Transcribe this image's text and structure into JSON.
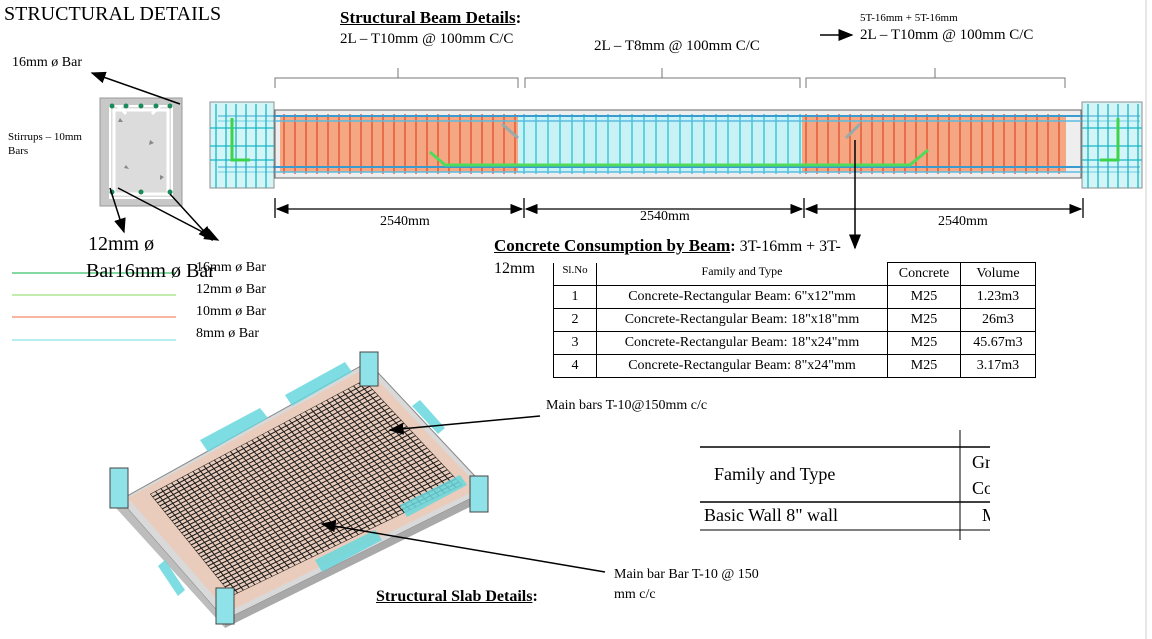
{
  "page_title": "STRUCTURAL DETAILS",
  "beam": {
    "heading": "Structural Beam Details",
    "heading_colon": ":",
    "stirrup_left": "2L – T10mm @ 100mm C/C",
    "stirrup_mid": "2L – T8mm @ 100mm C/C",
    "top_note": "5T-16mm + 5T-16mm",
    "stirrup_right": "2L – T10mm @ 100mm C/C",
    "span_1": "2540mm",
    "span_2": "2540mm",
    "span_3": "2540mm"
  },
  "section": {
    "bar_top": "16mm ø Bar",
    "stirrups_line1": "Stirrups – 10mm",
    "stirrups_line2": "Bars",
    "bar_bottom_a": "12mm ø",
    "bar_bottom_b": "Bar16mm ø Bar"
  },
  "legend": [
    {
      "label": "16mm ø Bar",
      "color": "#3cc16a"
    },
    {
      "label": "12mm ø Bar",
      "color": "#9fe07f"
    },
    {
      "label": "10mm ø Bar",
      "color": "#f08a6a"
    },
    {
      "label": "8mm ø Bar",
      "color": "#8fe3e8"
    }
  ],
  "concrete": {
    "heading": "Concrete Consumption by Beam",
    "heading_colon": ":",
    "heading_tail": " 3T-16mm + 3T-",
    "heading_wrap": "12mm",
    "col_sl": "Sl.No",
    "col_family": "Family and Type",
    "col_concrete": "Concrete",
    "col_volume": "Volume",
    "rows": [
      {
        "no": "1",
        "family": "Concrete-Rectangular Beam: 6\"x12\"mm",
        "concrete": "M25",
        "volume": "1.23m3"
      },
      {
        "no": "2",
        "family": "Concrete-Rectangular Beam: 18\"x18\"mm",
        "concrete": "M25",
        "volume": "26m3"
      },
      {
        "no": "3",
        "family": "Concrete-Rectangular Beam: 18\"x24\"mm",
        "concrete": "M25",
        "volume": "45.67m3"
      },
      {
        "no": "4",
        "family": "Concrete-Rectangular Beam: 8\"x24\"mm",
        "concrete": "M25",
        "volume": "3.17m3"
      }
    ]
  },
  "slab": {
    "main_bars_note": "Main bars T-10@150mm c/c",
    "main_bar_note_1": "Main bar Bar T-10 @ 150",
    "main_bar_note_2": "mm c/c",
    "heading": "Structural Slab Details",
    "heading_colon": ":"
  },
  "wall_table": {
    "col_family": "Family and Type",
    "col_gr_1": "Gr",
    "col_gr_2": "Co",
    "row_family": "Basic Wall 8\" wall",
    "row_value": "M"
  }
}
